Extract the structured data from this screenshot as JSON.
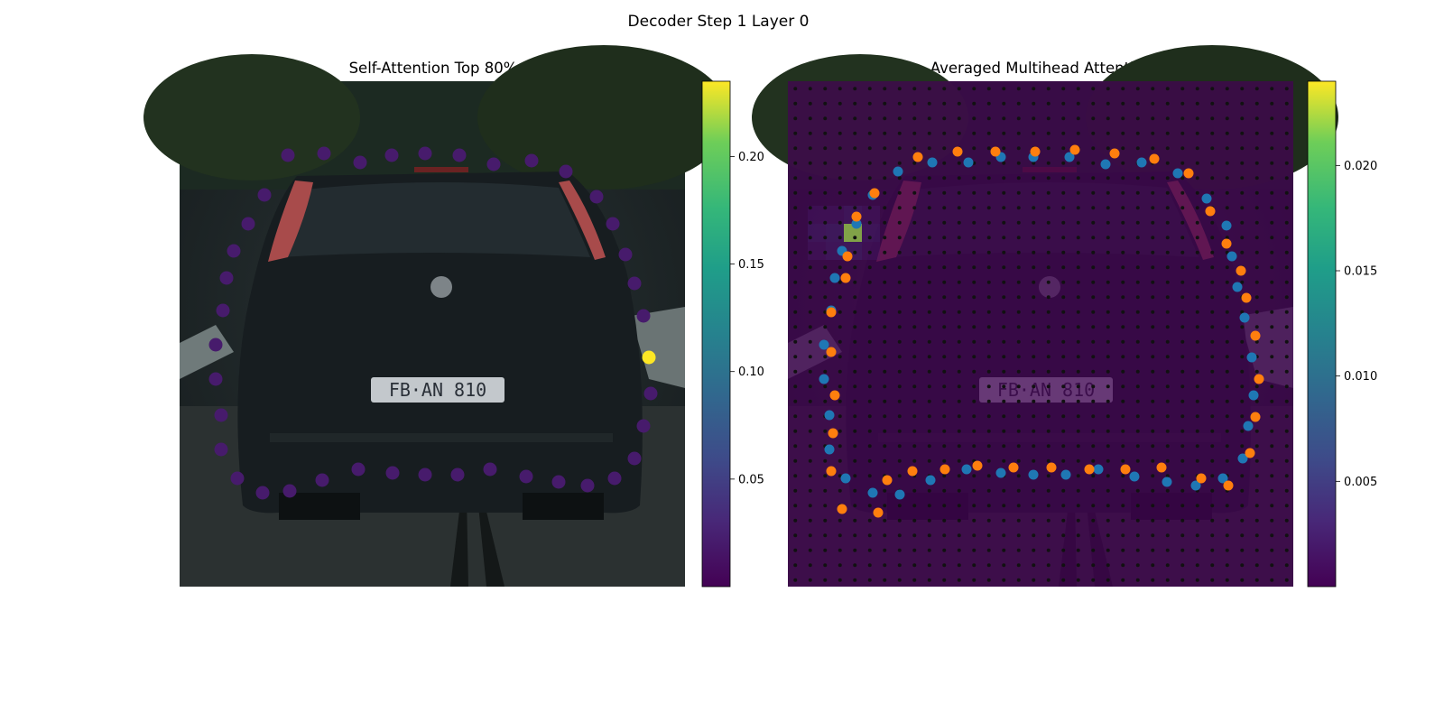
{
  "figure": {
    "suptitle": "Decoder Step 1 Layer 0"
  },
  "colors": {
    "viridis_low": "#440154",
    "viridis_mid": "#21918c",
    "viridis_high": "#fde725",
    "point_blue": "#1f77b4",
    "point_orange": "#ff7f0e",
    "grid_dot": "#111111"
  },
  "chart_data": [
    {
      "type": "scatter",
      "title": "Self-Attention Top 80%",
      "background": "car-rear-photo",
      "colorbar": {
        "colormap": "viridis",
        "range": [
          0.0,
          0.235
        ],
        "ticks": [
          0.05,
          0.1,
          0.15,
          0.2
        ],
        "tick_labels": [
          "0.05",
          "0.10",
          "0.15",
          "0.20"
        ]
      },
      "x_range": [
        0,
        560
      ],
      "y_range": [
        0,
        560
      ],
      "points": [
        [
          120,
          82,
          0.02
        ],
        [
          160,
          80,
          0.02
        ],
        [
          200,
          90,
          0.02
        ],
        [
          235,
          82,
          0.02
        ],
        [
          272,
          80,
          0.02
        ],
        [
          310,
          82,
          0.02
        ],
        [
          348,
          92,
          0.02
        ],
        [
          390,
          88,
          0.02
        ],
        [
          428,
          100,
          0.02
        ],
        [
          462,
          128,
          0.02
        ],
        [
          480,
          158,
          0.02
        ],
        [
          494,
          192,
          0.02
        ],
        [
          504,
          224,
          0.02
        ],
        [
          514,
          260,
          0.02
        ],
        [
          520,
          306,
          0.235
        ],
        [
          522,
          346,
          0.02
        ],
        [
          514,
          382,
          0.02
        ],
        [
          504,
          418,
          0.02
        ],
        [
          482,
          440,
          0.02
        ],
        [
          452,
          448,
          0.02
        ],
        [
          420,
          444,
          0.02
        ],
        [
          384,
          438,
          0.02
        ],
        [
          344,
          430,
          0.02
        ],
        [
          308,
          436,
          0.02
        ],
        [
          272,
          436,
          0.02
        ],
        [
          236,
          434,
          0.02
        ],
        [
          198,
          430,
          0.02
        ],
        [
          158,
          442,
          0.02
        ],
        [
          122,
          454,
          0.02
        ],
        [
          92,
          456,
          0.02
        ],
        [
          64,
          440,
          0.02
        ],
        [
          46,
          408,
          0.02
        ],
        [
          46,
          370,
          0.02
        ],
        [
          40,
          330,
          0.02
        ],
        [
          40,
          292,
          0.02
        ],
        [
          48,
          254,
          0.02
        ],
        [
          52,
          218,
          0.02
        ],
        [
          60,
          188,
          0.02
        ],
        [
          76,
          158,
          0.02
        ],
        [
          94,
          126,
          0.02
        ]
      ]
    },
    {
      "type": "scatter",
      "title": "Averaged Multihead Attention",
      "background": "car-rear-photo-with-attention-heatmap",
      "colorbar": {
        "colormap": "viridis",
        "range": [
          0.0,
          0.024
        ],
        "ticks": [
          0.005,
          0.01,
          0.015,
          0.02
        ],
        "tick_labels": [
          "0.005",
          "0.010",
          "0.015",
          "0.020"
        ]
      },
      "x_range": [
        0,
        560
      ],
      "y_range": [
        0,
        560
      ],
      "series": [
        {
          "color": "blue",
          "points": [
            [
              122,
              100
            ],
            [
              160,
              90
            ],
            [
              200,
              90
            ],
            [
              236,
              84
            ],
            [
              272,
              84
            ],
            [
              312,
              84
            ],
            [
              352,
              92
            ],
            [
              392,
              90
            ],
            [
              432,
              102
            ],
            [
              464,
              130
            ],
            [
              486,
              160
            ],
            [
              492,
              194
            ],
            [
              498,
              228
            ],
            [
              506,
              262
            ],
            [
              514,
              306
            ],
            [
              516,
              348
            ],
            [
              510,
              382
            ],
            [
              504,
              418
            ],
            [
              482,
              440
            ],
            [
              452,
              448
            ],
            [
              420,
              444
            ],
            [
              384,
              438
            ],
            [
              344,
              430
            ],
            [
              308,
              436
            ],
            [
              272,
              436
            ],
            [
              236,
              434
            ],
            [
              198,
              430
            ],
            [
              158,
              442
            ],
            [
              124,
              458
            ],
            [
              94,
              456
            ],
            [
              64,
              440
            ],
            [
              46,
              408
            ],
            [
              46,
              370
            ],
            [
              40,
              330
            ],
            [
              40,
              292
            ],
            [
              48,
              254
            ],
            [
              52,
              218
            ],
            [
              60,
              188
            ],
            [
              76,
              158
            ],
            [
              94,
              126
            ]
          ]
        },
        {
          "color": "orange",
          "points": [
            [
              144,
              84
            ],
            [
              188,
              78
            ],
            [
              230,
              78
            ],
            [
              274,
              78
            ],
            [
              318,
              76
            ],
            [
              362,
              80
            ],
            [
              406,
              86
            ],
            [
              444,
              102
            ],
            [
              468,
              144
            ],
            [
              486,
              180
            ],
            [
              502,
              210
            ],
            [
              508,
              240
            ],
            [
              518,
              282
            ],
            [
              522,
              330
            ],
            [
              518,
              372
            ],
            [
              512,
              412
            ],
            [
              488,
              448
            ],
            [
              458,
              440
            ],
            [
              414,
              428
            ],
            [
              374,
              430
            ],
            [
              334,
              430
            ],
            [
              292,
              428
            ],
            [
              250,
              428
            ],
            [
              210,
              426
            ],
            [
              174,
              430
            ],
            [
              138,
              432
            ],
            [
              110,
              442
            ],
            [
              100,
              478
            ],
            [
              60,
              474
            ],
            [
              48,
              432
            ],
            [
              50,
              390
            ],
            [
              52,
              348
            ],
            [
              48,
              300
            ],
            [
              48,
              256
            ],
            [
              64,
              218
            ],
            [
              66,
              194
            ],
            [
              76,
              150
            ],
            [
              96,
              124
            ]
          ]
        }
      ],
      "heat_cells": [
        [
          0.002,
          0.002,
          0.003,
          0.002
        ],
        [
          0.003,
          0.004,
          0.022,
          0.003
        ],
        [
          0.002,
          0.003,
          0.004,
          0.002
        ]
      ]
    }
  ]
}
